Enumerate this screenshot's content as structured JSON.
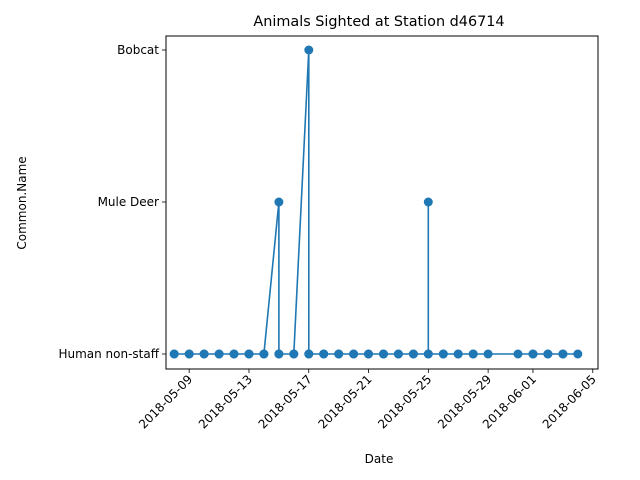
{
  "chart_data": {
    "type": "line",
    "title": "Animals Sighted at Station d46714",
    "xlabel": "Date",
    "ylabel": "Common.Name",
    "grid": false,
    "legend": "none",
    "xlim": [
      "2018-05-07",
      "2018-06-05"
    ],
    "x_ticks": [
      "2018-05-09",
      "2018-05-13",
      "2018-05-17",
      "2018-05-21",
      "2018-05-25",
      "2018-05-29",
      "2018-06-01",
      "2018-06-05"
    ],
    "y_categories": [
      "Human non-staff",
      "Mule Deer",
      "Bobcat"
    ],
    "series": [
      {
        "color": "#1f77b4",
        "marker": "circle",
        "points": [
          {
            "x": "2018-05-08",
            "y": "Human non-staff"
          },
          {
            "x": "2018-05-08",
            "y": "Human non-staff"
          },
          {
            "x": "2018-05-09",
            "y": "Human non-staff"
          },
          {
            "x": "2018-05-09",
            "y": "Human non-staff"
          },
          {
            "x": "2018-05-10",
            "y": "Human non-staff"
          },
          {
            "x": "2018-05-10",
            "y": "Human non-staff"
          },
          {
            "x": "2018-05-11",
            "y": "Human non-staff"
          },
          {
            "x": "2018-05-11",
            "y": "Human non-staff"
          },
          {
            "x": "2018-05-12",
            "y": "Human non-staff"
          },
          {
            "x": "2018-05-12",
            "y": "Human non-staff"
          },
          {
            "x": "2018-05-13",
            "y": "Human non-staff"
          },
          {
            "x": "2018-05-13",
            "y": "Human non-staff"
          },
          {
            "x": "2018-05-14",
            "y": "Human non-staff"
          },
          {
            "x": "2018-05-14",
            "y": "Human non-staff"
          },
          {
            "x": "2018-05-15",
            "y": "Mule Deer"
          },
          {
            "x": "2018-05-15",
            "y": "Human non-staff"
          },
          {
            "x": "2018-05-15",
            "y": "Human non-staff"
          },
          {
            "x": "2018-05-16",
            "y": "Human non-staff"
          },
          {
            "x": "2018-05-16",
            "y": "Human non-staff"
          },
          {
            "x": "2018-05-17",
            "y": "Bobcat"
          },
          {
            "x": "2018-05-17",
            "y": "Human non-staff"
          },
          {
            "x": "2018-05-17",
            "y": "Human non-staff"
          },
          {
            "x": "2018-05-18",
            "y": "Human non-staff"
          },
          {
            "x": "2018-05-18",
            "y": "Human non-staff"
          },
          {
            "x": "2018-05-19",
            "y": "Human non-staff"
          },
          {
            "x": "2018-05-19",
            "y": "Human non-staff"
          },
          {
            "x": "2018-05-20",
            "y": "Human non-staff"
          },
          {
            "x": "2018-05-20",
            "y": "Human non-staff"
          },
          {
            "x": "2018-05-21",
            "y": "Human non-staff"
          },
          {
            "x": "2018-05-21",
            "y": "Human non-staff"
          },
          {
            "x": "2018-05-22",
            "y": "Human non-staff"
          },
          {
            "x": "2018-05-22",
            "y": "Human non-staff"
          },
          {
            "x": "2018-05-23",
            "y": "Human non-staff"
          },
          {
            "x": "2018-05-23",
            "y": "Human non-staff"
          },
          {
            "x": "2018-05-24",
            "y": "Human non-staff"
          },
          {
            "x": "2018-05-24",
            "y": "Human non-staff"
          },
          {
            "x": "2018-05-25",
            "y": "Human non-staff"
          },
          {
            "x": "2018-05-25",
            "y": "Mule Deer"
          },
          {
            "x": "2018-05-25",
            "y": "Human non-staff"
          },
          {
            "x": "2018-05-26",
            "y": "Human non-staff"
          },
          {
            "x": "2018-05-26",
            "y": "Human non-staff"
          },
          {
            "x": "2018-05-27",
            "y": "Human non-staff"
          },
          {
            "x": "2018-05-27",
            "y": "Human non-staff"
          },
          {
            "x": "2018-05-28",
            "y": "Human non-staff"
          },
          {
            "x": "2018-05-28",
            "y": "Human non-staff"
          },
          {
            "x": "2018-05-29",
            "y": "Human non-staff"
          },
          {
            "x": "2018-05-31",
            "y": "Human non-staff"
          },
          {
            "x": "2018-06-01",
            "y": "Human non-staff"
          },
          {
            "x": "2018-06-01",
            "y": "Human non-staff"
          },
          {
            "x": "2018-06-02",
            "y": "Human non-staff"
          },
          {
            "x": "2018-06-02",
            "y": "Human non-staff"
          },
          {
            "x": "2018-06-03",
            "y": "Human non-staff"
          },
          {
            "x": "2018-06-03",
            "y": "Human non-staff"
          },
          {
            "x": "2018-06-04",
            "y": "Human non-staff"
          }
        ]
      }
    ]
  }
}
